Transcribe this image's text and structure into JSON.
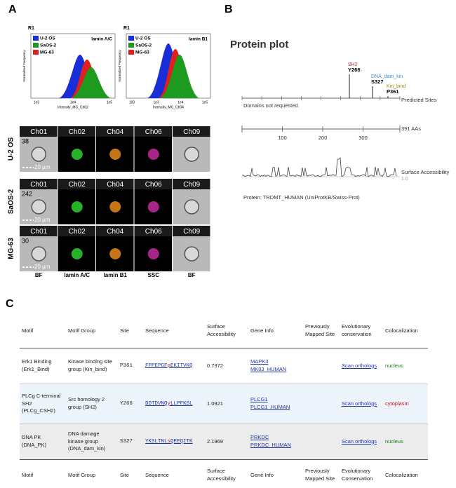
{
  "panel_a": {
    "label": "A",
    "histograms": [
      {
        "gate": "R1",
        "marker": "lamin A/C",
        "legend": [
          "U-2 OS",
          "SaOS-2",
          "MG-63"
        ],
        "y_label": "Normalized Frequency",
        "x_label": "Intensity_MC_Ch02",
        "x_ticks": [
          "1e3",
          "1e4",
          "1e5"
        ]
      },
      {
        "gate": "R1",
        "marker": "lamin B1",
        "legend": [
          "U-2 OS",
          "SaOS-2",
          "MG-63"
        ],
        "y_label": "Normalized Frequency",
        "x_label": "Intensity_MC_Ch04",
        "x_ticks": [
          "100",
          "1e3",
          "1e4",
          "1e5"
        ]
      }
    ],
    "channels": [
      "Ch01",
      "Ch02",
      "Ch04",
      "Ch06",
      "Ch09"
    ],
    "rows": [
      {
        "cell_line": "U-2 OS",
        "count": 38,
        "scale": "20 µm"
      },
      {
        "cell_line": "SaOS-2",
        "count": 242,
        "scale": "20 µm"
      },
      {
        "cell_line": "MG-63",
        "count": 30,
        "scale": "20 µm"
      }
    ],
    "channel_labels": [
      "BF",
      "lamin A/C",
      "lamin B1",
      "SSC",
      "BF"
    ]
  },
  "panel_b": {
    "label": "B",
    "title": "Protein plot",
    "sites": [
      {
        "group": "SH2",
        "site": "Y266"
      },
      {
        "group": "DNA_dam_kin",
        "site": "S327"
      },
      {
        "group": "Kin_bind",
        "site": "P361"
      }
    ],
    "predicted_sites": "Predicted Sites",
    "domains": "Domains not requested.",
    "length": "391 AAs",
    "ruler_ticks": [
      100,
      200,
      300
    ],
    "surface_label": "Surface Accessibility",
    "surface_ref": "1.0",
    "protein": "Protein: TRDMT_HUMAN (UniProtKB/Swiss-Prot)"
  },
  "panel_c": {
    "label": "C",
    "header": [
      "Motif",
      "Motif Group",
      "Site",
      "Sequence",
      "Surface Accessibility",
      "Gene Info",
      "Previously Mapped Site",
      "Evolutionary conservation",
      "Colocalization"
    ],
    "rows": [
      {
        "motif": "Erk1 Binding (Erk1_Bind)",
        "group": "Kinase binding site group (Kin_bind)",
        "site": "P361",
        "sequence": [
          "FPPEPGF",
          "p",
          "EKITVKQ"
        ],
        "surface": 0.7372,
        "gene": [
          "MAPK3",
          "MK03_HUMAN"
        ],
        "conservation": "Scan orthologs",
        "colocalization": "nucleus"
      },
      {
        "motif": "PLCg C-terminal SH2 (PLCg_CSH2)",
        "group": "Src homology 2 group (SH2)",
        "site": "Y266",
        "sequence": [
          "DDTDVNQ",
          "y",
          "LLPFKSL"
        ],
        "surface": 1.0921,
        "gene": [
          "PLCG1",
          "PLCG1_HUMAN"
        ],
        "conservation": "Scan orthologs",
        "colocalization": "cytoplasm"
      },
      {
        "motif": "DNA PK (DNA_PK)",
        "group": "DNA damage kinase group (DNA_dam_kin)",
        "site": "S327",
        "sequence": [
          "YKSLTNL",
          "s",
          "QEEQITK"
        ],
        "surface": 2.1969,
        "gene": [
          "PRKDC",
          "PRKDC_HUMAN"
        ],
        "conservation": "Scan orthologs",
        "colocalization": "nucleus"
      }
    ],
    "footer": [
      "Motif",
      "Motif Group",
      "Site",
      "Sequence",
      "Surface Accessibility",
      "Gene Info",
      "Previously Mapped Site",
      "Evolutionary Conservation",
      "Colocalization"
    ]
  }
}
